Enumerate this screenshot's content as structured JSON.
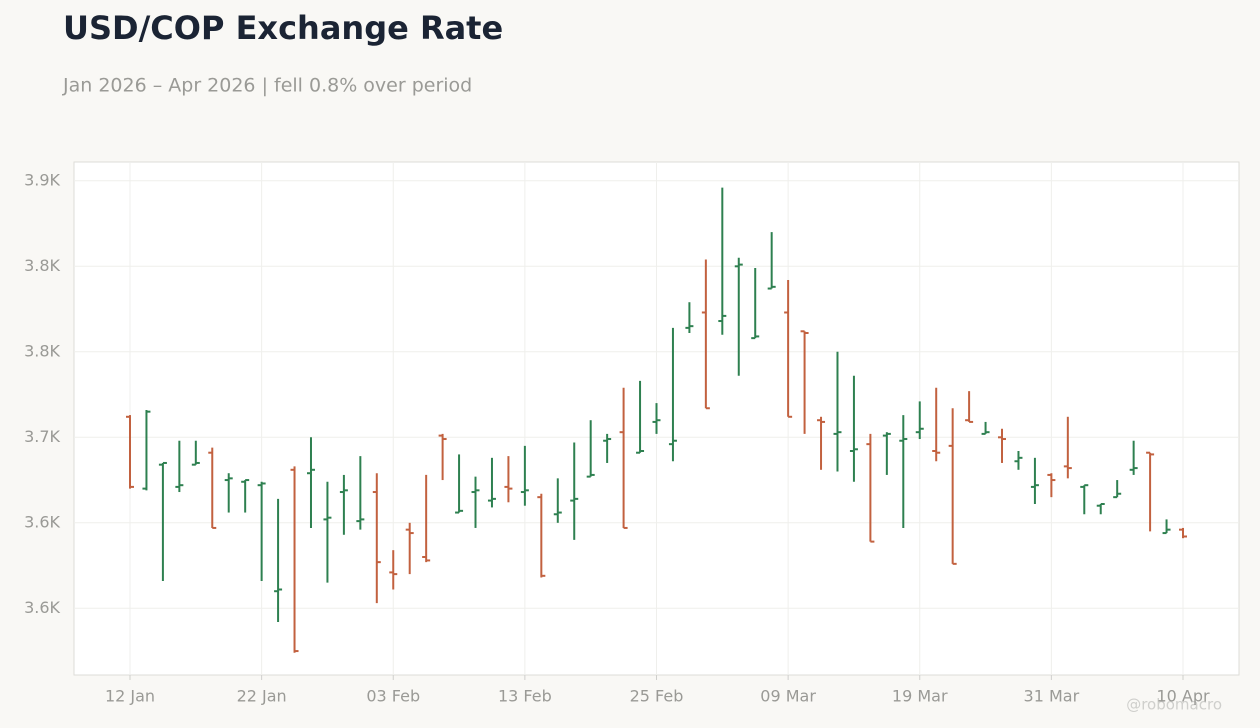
{
  "chart_data": {
    "type": "ohlc",
    "title": "USD/COP Exchange Rate",
    "subtitle": "Jan 2026 – Apr 2026 | fell 0.8% over period",
    "watermark": "@robomacro",
    "categories": [
      "12 Jan",
      null,
      null,
      null,
      null,
      null,
      null,
      null,
      "22 Jan",
      null,
      null,
      null,
      null,
      null,
      null,
      null,
      "03 Feb",
      null,
      null,
      null,
      null,
      null,
      null,
      null,
      "13 Feb",
      null,
      null,
      null,
      null,
      null,
      null,
      null,
      "25 Feb",
      null,
      null,
      null,
      null,
      null,
      null,
      null,
      "09 Mar",
      null,
      null,
      null,
      null,
      null,
      null,
      null,
      "19 Mar",
      null,
      null,
      null,
      null,
      null,
      null,
      null,
      "31 Mar",
      null,
      null,
      null,
      null,
      null,
      null,
      null,
      "10 Apr"
    ],
    "open": [
      3712,
      3670,
      3684,
      3671,
      3684,
      3691,
      3675,
      3674,
      3672,
      3610,
      3681,
      3679,
      3652,
      3668,
      3651,
      3668,
      3621,
      3646,
      3630,
      3701,
      3656,
      3668,
      3663,
      3671,
      3668,
      3665,
      3655,
      3663,
      3677,
      3698,
      3703,
      3691,
      3709,
      3696,
      3764,
      3773,
      3768,
      3800,
      3758,
      3787,
      3773,
      3762,
      3710,
      3702,
      3692,
      3696,
      3701,
      3698,
      3703,
      3692,
      3695,
      3710,
      3702,
      3700,
      3686,
      3671,
      3678,
      3683,
      3671,
      3660,
      3665,
      3681,
      3691,
      3644,
      3646
    ],
    "high": [
      3713,
      3716,
      3685,
      3698,
      3698,
      3694,
      3679,
      3675,
      3674,
      3664,
      3683,
      3700,
      3674,
      3678,
      3689,
      3679,
      3634,
      3650,
      3678,
      3702,
      3690,
      3677,
      3688,
      3689,
      3695,
      3667,
      3676,
      3697,
      3710,
      3702,
      3729,
      3733,
      3720,
      3764,
      3779,
      3804,
      3846,
      3805,
      3799,
      3820,
      3792,
      3762,
      3712,
      3750,
      3736,
      3702,
      3703,
      3713,
      3721,
      3729,
      3717,
      3727,
      3709,
      3705,
      3692,
      3688,
      3679,
      3712,
      3672,
      3661,
      3675,
      3698,
      3691,
      3652,
      3647
    ],
    "low": [
      3670,
      3669,
      3616,
      3668,
      3684,
      3647,
      3656,
      3656,
      3616,
      3592,
      3574,
      3647,
      3615,
      3643,
      3646,
      3603,
      3611,
      3620,
      3627,
      3675,
      3656,
      3647,
      3659,
      3662,
      3660,
      3618,
      3650,
      3640,
      3677,
      3685,
      3647,
      3691,
      3702,
      3686,
      3761,
      3717,
      3760,
      3736,
      3758,
      3787,
      3712,
      3702,
      3681,
      3680,
      3674,
      3639,
      3678,
      3647,
      3699,
      3686,
      3626,
      3709,
      3702,
      3685,
      3681,
      3661,
      3665,
      3676,
      3655,
      3655,
      3665,
      3678,
      3645,
      3644,
      3641
    ],
    "close": [
      3671,
      3715,
      3685,
      3672,
      3685,
      3647,
      3676,
      3675,
      3673,
      3611,
      3575,
      3681,
      3653,
      3669,
      3652,
      3627,
      3620,
      3644,
      3628,
      3699,
      3657,
      3669,
      3664,
      3670,
      3669,
      3619,
      3656,
      3664,
      3678,
      3699,
      3647,
      3692,
      3710,
      3698,
      3765,
      3717,
      3771,
      3801,
      3759,
      3788,
      3712,
      3761,
      3709,
      3703,
      3693,
      3639,
      3702,
      3699,
      3705,
      3691,
      3626,
      3709,
      3703,
      3699,
      3688,
      3672,
      3675,
      3682,
      3672,
      3661,
      3667,
      3682,
      3690,
      3646,
      3642
    ],
    "up_color": "#2e8050",
    "down_color": "#c2613f",
    "ylim": [
      3561,
      3861
    ],
    "yticks": [
      {
        "value": 3600,
        "label": "3.6K"
      },
      {
        "value": 3650,
        "label": "3.6K"
      },
      {
        "value": 3700,
        "label": "3.7K"
      },
      {
        "value": 3750,
        "label": "3.8K"
      },
      {
        "value": 3800,
        "label": "3.8K"
      },
      {
        "value": 3850,
        "label": "3.9K"
      }
    ],
    "grid": true
  }
}
